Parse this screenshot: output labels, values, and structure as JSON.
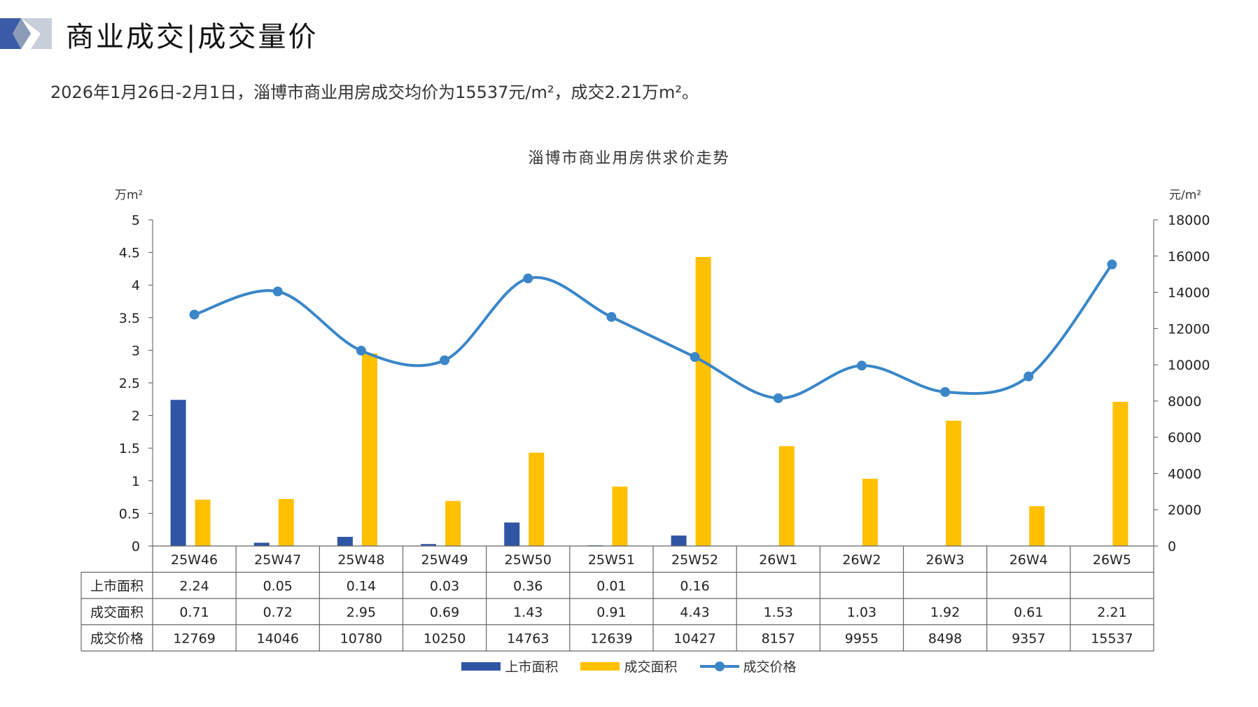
{
  "header": {
    "title": "商业成交|成交量价",
    "summary": "2026年1月26日-2月1日，淄博市商业用房成交均价为15537元/m²，成交2.21万m²。"
  },
  "colors": {
    "listed": "#2F55A5",
    "traded": "#FFC000",
    "price": "#3A86C8",
    "brand_dark": "#3B5BA8",
    "brand_light": "#C9CFD8"
  },
  "chart_data": {
    "type": "bar",
    "title": "淄博市商业用房供求价走势",
    "y_left_unit": "万m²",
    "y_right_unit": "元/m²",
    "categories": [
      "25W46",
      "25W47",
      "25W48",
      "25W49",
      "25W50",
      "25W51",
      "25W52",
      "26W1",
      "26W2",
      "26W3",
      "26W4",
      "26W5"
    ],
    "ylim_left": [
      0,
      5
    ],
    "yticks_left": [
      "0",
      "0.5",
      "1",
      "1.5",
      "2",
      "2.5",
      "3",
      "3.5",
      "4",
      "4.5",
      "5"
    ],
    "ylim_right": [
      0,
      18000
    ],
    "yticks_right": [
      "0",
      "2000",
      "4000",
      "6000",
      "8000",
      "10000",
      "12000",
      "14000",
      "16000",
      "18000"
    ],
    "series": [
      {
        "name": "上市面积",
        "kind": "bar",
        "axis": "left",
        "values": [
          2.24,
          0.05,
          0.14,
          0.03,
          0.36,
          0.01,
          0.16,
          null,
          null,
          null,
          null,
          null
        ],
        "labels": [
          "2.24",
          "0.05",
          "0.14",
          "0.03",
          "0.36",
          "0.01",
          "0.16",
          "",
          "",
          "",
          "",
          ""
        ]
      },
      {
        "name": "成交面积",
        "kind": "bar",
        "axis": "left",
        "values": [
          0.71,
          0.72,
          2.95,
          0.69,
          1.43,
          0.91,
          4.43,
          1.53,
          1.03,
          1.92,
          0.61,
          2.21
        ],
        "labels": [
          "0.71",
          "0.72",
          "2.95",
          "0.69",
          "1.43",
          "0.91",
          "4.43",
          "1.53",
          "1.03",
          "1.92",
          "0.61",
          "2.21"
        ]
      },
      {
        "name": "成交价格",
        "kind": "line",
        "axis": "right",
        "values": [
          12769,
          14046,
          10780,
          10250,
          14763,
          12639,
          10427,
          8157,
          9955,
          8498,
          9357,
          15537
        ],
        "labels": [
          "12769",
          "14046",
          "10780",
          "10250",
          "14763",
          "12639",
          "10427",
          "8157",
          "9955",
          "8498",
          "9357",
          "15537"
        ]
      }
    ],
    "grid": false,
    "legend_position": "bottom-center",
    "data_table": true
  }
}
